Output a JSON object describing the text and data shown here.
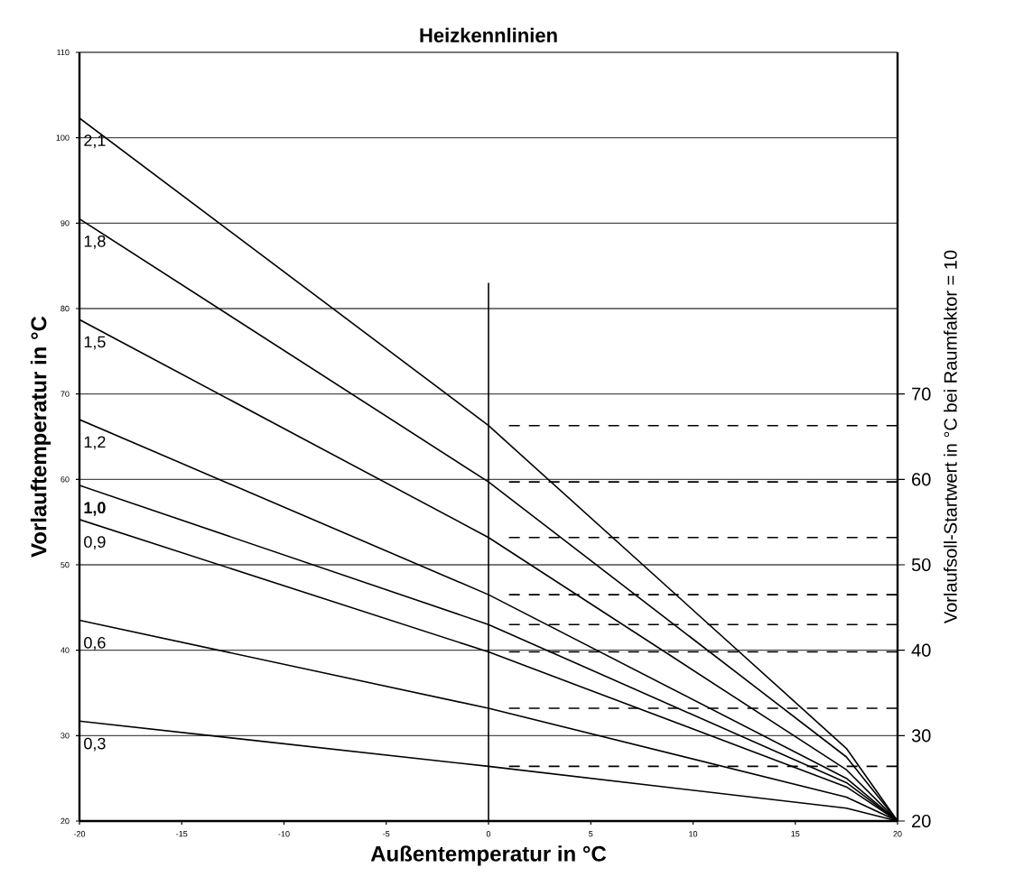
{
  "chart_data": {
    "type": "line",
    "title": "Heizkennlinien",
    "xlabel": "Außentemperatur in °C",
    "ylabel": "Vorlauftemperatur in °C",
    "y2label": "Vorlaufsoll-Startwert in °C bei Raumfaktor = 10",
    "xlim": [
      -20,
      20
    ],
    "xticks": [
      -20,
      -15,
      -10,
      -5,
      0,
      5,
      10,
      15,
      20
    ],
    "ylim": [
      20,
      110
    ],
    "yticks": [
      20,
      30,
      40,
      50,
      60,
      70,
      80,
      90,
      100,
      110
    ],
    "y2lim": [
      20,
      110
    ],
    "y2ticks": [
      20,
      30,
      40,
      50,
      60,
      70
    ],
    "grid": "y",
    "legend": "left",
    "marker": "none",
    "series": [
      {
        "name": "2,1",
        "color": "#000000",
        "x": [
          -20,
          0,
          17.5,
          20
        ],
        "values": [
          102.3,
          66.3,
          28.5,
          20
        ]
      },
      {
        "name": "1,8",
        "color": "#000000",
        "x": [
          -20,
          0,
          17.5,
          20
        ],
        "values": [
          90.5,
          59.7,
          27.5,
          20
        ]
      },
      {
        "name": "1,5",
        "color": "#000000",
        "x": [
          -20,
          0,
          17.5,
          20
        ],
        "values": [
          78.7,
          53.2,
          26,
          20
        ]
      },
      {
        "name": "1,2",
        "color": "#000000",
        "x": [
          -20,
          0,
          17.5,
          20
        ],
        "values": [
          67,
          46.5,
          25,
          20
        ]
      },
      {
        "name": "1,0",
        "color": "#000000",
        "x": [
          -20,
          0,
          17.5,
          20
        ],
        "values": [
          59.3,
          43,
          24.5,
          20
        ]
      },
      {
        "name": "0,9",
        "color": "#000000",
        "x": [
          -20,
          0,
          17.5,
          20
        ],
        "values": [
          55.3,
          39.8,
          24,
          20
        ]
      },
      {
        "name": "0,6",
        "color": "#000000",
        "x": [
          -20,
          0,
          17.5,
          20
        ],
        "values": [
          43.5,
          33.2,
          22.8,
          20
        ]
      },
      {
        "name": "0,3",
        "color": "#000000",
        "x": [
          -20,
          0,
          17.5,
          20
        ],
        "values": [
          31.7,
          26.4,
          21.5,
          20
        ]
      },
      {
        "color": "#000000",
        "x": [
          0,
          0
        ],
        "values": [
          20,
          83
        ]
      },
      {
        "color": "#000000",
        "axis": "y2",
        "line_style": "dashed",
        "x": [
          1,
          20
        ],
        "values": [
          66.3,
          66.3
        ]
      },
      {
        "color": "#000000",
        "axis": "y2",
        "line_style": "dashed",
        "x": [
          1,
          20
        ],
        "values": [
          59.7,
          59.7
        ]
      },
      {
        "color": "#000000",
        "axis": "y2",
        "line_style": "dashed",
        "x": [
          1,
          20
        ],
        "values": [
          53.2,
          53.2
        ]
      },
      {
        "color": "#000000",
        "axis": "y2",
        "line_style": "dashed",
        "x": [
          1,
          20
        ],
        "values": [
          46.5,
          46.5
        ]
      },
      {
        "color": "#000000",
        "axis": "y2",
        "line_style": "dashed",
        "x": [
          1,
          20
        ],
        "values": [
          43,
          43
        ]
      },
      {
        "color": "#000000",
        "axis": "y2",
        "line_style": "dashed",
        "x": [
          1,
          20
        ],
        "values": [
          39.8,
          39.8
        ]
      },
      {
        "color": "#000000",
        "axis": "y2",
        "line_style": "dashed",
        "x": [
          1,
          20
        ],
        "values": [
          33.2,
          33.2
        ]
      },
      {
        "color": "#000000",
        "axis": "y2",
        "line_style": "dashed",
        "x": [
          1,
          20
        ],
        "values": [
          26.4,
          26.4
        ]
      }
    ]
  }
}
